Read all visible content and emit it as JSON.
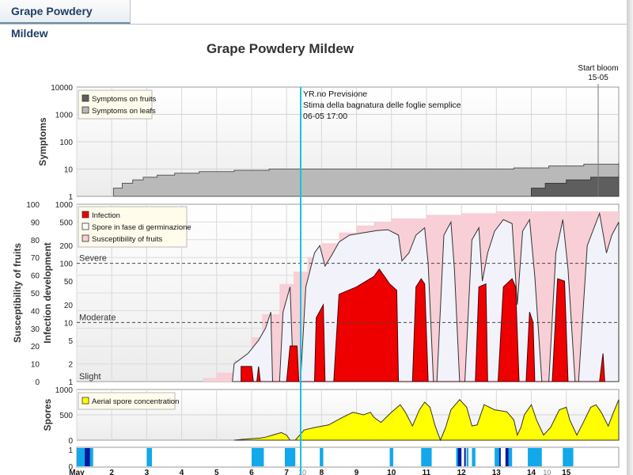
{
  "tab": {
    "label": "Grape Powdery Mildew"
  },
  "chart_data": {
    "type": "area",
    "title": "Grape Powdery Mildew",
    "current_marker": {
      "lines": [
        "YR.no Previsione",
        "Stima della bagnatura delle foglie semplice",
        "06-05 17:00"
      ],
      "color": "#19c3d8"
    },
    "bloom_marker": {
      "lines": [
        "Start bloom",
        "15-05"
      ]
    },
    "x_axis": {
      "ticks": [
        {
          "label": "May",
          "day": 1
        },
        {
          "label": "2",
          "day": 2
        },
        {
          "label": "3",
          "day": 3
        },
        {
          "label": "4",
          "day": 4
        },
        {
          "label": "5",
          "day": 5
        },
        {
          "label": "6",
          "day": 6
        },
        {
          "label": "7",
          "day": 7
        },
        {
          "label": "8",
          "day": 8
        },
        {
          "label": "9",
          "day": 9
        },
        {
          "label": "10",
          "day": 10
        },
        {
          "label": "11",
          "day": 11
        },
        {
          "label": "12",
          "day": 12
        },
        {
          "label": "13",
          "day": 13
        },
        {
          "label": "14",
          "day": 14
        },
        {
          "label": "15",
          "day": 15
        }
      ],
      "minor_labels": [
        {
          "label": "10",
          "day": 7.45
        },
        {
          "label": "10",
          "day": 14.45
        }
      ],
      "range": [
        1,
        16.5
      ]
    },
    "symptoms": {
      "ylabel": "Symptoms",
      "scale": "log",
      "ylim": [
        1,
        10000
      ],
      "ticks": [
        "10000",
        "1000",
        "100",
        "10",
        "1"
      ],
      "legend": [
        "Symptoms on fruits",
        "Symptoms on leafs"
      ],
      "colors": {
        "fruits": "#5e5e5e",
        "leafs": "#b9b9b9"
      },
      "leafs": [
        [
          2.05,
          2
        ],
        [
          2.3,
          3
        ],
        [
          2.6,
          4
        ],
        [
          2.9,
          5
        ],
        [
          3.3,
          6
        ],
        [
          3.8,
          7
        ],
        [
          4.5,
          8
        ],
        [
          5.5,
          9
        ],
        [
          6.5,
          10
        ],
        [
          10,
          10
        ],
        [
          13.5,
          11
        ],
        [
          14.5,
          13
        ],
        [
          15.5,
          15
        ],
        [
          16.5,
          17
        ]
      ],
      "fruits": [
        [
          14.0,
          2
        ],
        [
          14.4,
          3
        ],
        [
          15.0,
          4
        ],
        [
          15.7,
          5
        ],
        [
          16.5,
          6
        ]
      ]
    },
    "infection": {
      "ylabel_left": "Susceptibility of fruits",
      "ylabel_right": "Infection development",
      "left_ticks": [
        "100",
        "90",
        "80",
        "70",
        "60",
        "50",
        "40",
        "30",
        "20",
        "10",
        "0"
      ],
      "right_ticks": [
        "1000",
        "500",
        "200",
        "100",
        "50",
        "20",
        "10",
        "5",
        "2",
        "1"
      ],
      "thresholds": [
        {
          "label": "Severe",
          "value": 100
        },
        {
          "label": "Moderate",
          "value": 10
        },
        {
          "label": "Slight",
          "value": 1
        }
      ],
      "legend": [
        "Infection",
        "Spore in fase di germinazione",
        "Susceptibility of fruits"
      ],
      "colors": {
        "infection": "#ee0000",
        "spores": "#f2f2fa",
        "susceptibility": "#f8cfd6"
      },
      "susceptibility": [
        [
          4.0,
          0
        ],
        [
          4.6,
          2
        ],
        [
          5.0,
          5
        ],
        [
          5.5,
          12
        ],
        [
          6.0,
          25
        ],
        [
          6.3,
          38
        ],
        [
          6.8,
          55
        ],
        [
          7.2,
          62
        ],
        [
          7.6,
          70
        ],
        [
          8.0,
          78
        ],
        [
          8.5,
          84
        ],
        [
          9.0,
          88
        ],
        [
          9.5,
          90
        ],
        [
          10.0,
          92
        ],
        [
          11.0,
          94
        ],
        [
          12.0,
          95
        ],
        [
          13.0,
          96
        ],
        [
          16.5,
          98
        ]
      ],
      "germinating_spores": [
        [
          5.45,
          1
        ],
        [
          5.5,
          2
        ],
        [
          5.9,
          3
        ],
        [
          6.2,
          5
        ],
        [
          6.4,
          8
        ],
        [
          6.55,
          15
        ],
        [
          6.6,
          1
        ],
        [
          6.8,
          1
        ],
        [
          6.9,
          15
        ],
        [
          7.1,
          40
        ],
        [
          7.2,
          1
        ],
        [
          7.4,
          1
        ],
        [
          7.55,
          40
        ],
        [
          7.8,
          150
        ],
        [
          7.95,
          200
        ],
        [
          8.1,
          90
        ],
        [
          8.3,
          140
        ],
        [
          8.5,
          230
        ],
        [
          8.8,
          300
        ],
        [
          9.2,
          330
        ],
        [
          9.6,
          360
        ],
        [
          9.9,
          370
        ],
        [
          10.2,
          300
        ],
        [
          10.3,
          110
        ],
        [
          10.5,
          150
        ],
        [
          10.7,
          300
        ],
        [
          10.95,
          400
        ],
        [
          11.05,
          100
        ],
        [
          11.2,
          1
        ],
        [
          11.3,
          1
        ],
        [
          11.5,
          300
        ],
        [
          11.7,
          500
        ],
        [
          11.8,
          80
        ],
        [
          11.95,
          1
        ],
        [
          12.1,
          1
        ],
        [
          12.3,
          250
        ],
        [
          12.5,
          400
        ],
        [
          12.6,
          50
        ],
        [
          12.75,
          150
        ],
        [
          12.95,
          350
        ],
        [
          13.2,
          550
        ],
        [
          13.45,
          470
        ],
        [
          13.6,
          20
        ],
        [
          13.75,
          350
        ],
        [
          13.95,
          550
        ],
        [
          14.1,
          60
        ],
        [
          14.3,
          1
        ],
        [
          14.5,
          1
        ],
        [
          14.7,
          150
        ],
        [
          14.9,
          550
        ],
        [
          15.05,
          80
        ],
        [
          15.25,
          1
        ],
        [
          15.35,
          1
        ],
        [
          15.6,
          200
        ],
        [
          15.95,
          700
        ],
        [
          16.15,
          150
        ],
        [
          16.3,
          300
        ],
        [
          16.5,
          500
        ]
      ],
      "infection": [
        [
          5.7,
          1.8
        ],
        [
          6.0,
          1.8
        ],
        [
          6.05,
          1
        ],
        [
          6.15,
          1
        ],
        [
          6.2,
          1.8
        ],
        [
          6.25,
          1
        ],
        [
          7.0,
          1
        ],
        [
          7.1,
          4
        ],
        [
          7.3,
          4
        ],
        [
          7.35,
          1
        ],
        [
          7.8,
          1
        ],
        [
          7.85,
          12
        ],
        [
          8.05,
          20
        ],
        [
          8.1,
          1
        ],
        [
          8.35,
          1
        ],
        [
          8.5,
          30
        ],
        [
          9.0,
          40
        ],
        [
          9.5,
          60
        ],
        [
          9.65,
          80
        ],
        [
          9.8,
          60
        ],
        [
          9.95,
          45
        ],
        [
          10.15,
          35
        ],
        [
          10.2,
          1
        ],
        [
          10.6,
          1
        ],
        [
          10.7,
          40
        ],
        [
          10.85,
          55
        ],
        [
          10.95,
          45
        ],
        [
          11.05,
          1
        ],
        [
          12.4,
          1
        ],
        [
          12.5,
          40
        ],
        [
          12.7,
          45
        ],
        [
          12.75,
          1
        ],
        [
          13.05,
          1
        ],
        [
          13.2,
          40
        ],
        [
          13.45,
          55
        ],
        [
          13.55,
          40
        ],
        [
          13.65,
          1
        ],
        [
          13.85,
          1
        ],
        [
          13.95,
          15
        ],
        [
          14.05,
          10
        ],
        [
          14.1,
          1
        ],
        [
          14.6,
          1
        ],
        [
          14.75,
          55
        ],
        [
          14.95,
          50
        ],
        [
          15.05,
          1
        ],
        [
          15.95,
          1
        ],
        [
          16.05,
          3
        ],
        [
          16.1,
          1
        ]
      ]
    },
    "spores": {
      "ylabel": "Spores",
      "ylim": [
        0,
        1000
      ],
      "ticks": [
        "1000",
        "500",
        "0"
      ],
      "legend": [
        "Aerial spore concentration"
      ],
      "colors": {
        "fill": "#ffff00"
      },
      "values": [
        [
          5.5,
          0
        ],
        [
          5.8,
          20
        ],
        [
          6.0,
          30
        ],
        [
          6.25,
          40
        ],
        [
          6.4,
          60
        ],
        [
          6.6,
          100
        ],
        [
          6.85,
          150
        ],
        [
          7.0,
          100
        ],
        [
          7.1,
          0
        ],
        [
          7.25,
          0
        ],
        [
          7.5,
          200
        ],
        [
          7.8,
          250
        ],
        [
          8.2,
          300
        ],
        [
          8.6,
          450
        ],
        [
          8.9,
          550
        ],
        [
          9.2,
          500
        ],
        [
          9.4,
          550
        ],
        [
          9.5,
          450
        ],
        [
          9.7,
          350
        ],
        [
          10.0,
          550
        ],
        [
          10.25,
          700
        ],
        [
          10.4,
          550
        ],
        [
          10.6,
          280
        ],
        [
          10.8,
          600
        ],
        [
          10.95,
          750
        ],
        [
          11.1,
          650
        ],
        [
          11.25,
          280
        ],
        [
          11.4,
          0
        ],
        [
          11.55,
          250
        ],
        [
          11.7,
          600
        ],
        [
          11.95,
          800
        ],
        [
          12.15,
          650
        ],
        [
          12.3,
          280
        ],
        [
          12.45,
          300
        ],
        [
          12.65,
          700
        ],
        [
          12.95,
          600
        ],
        [
          13.3,
          560
        ],
        [
          13.5,
          400
        ],
        [
          13.6,
          100
        ],
        [
          13.7,
          250
        ],
        [
          13.8,
          500
        ],
        [
          14.0,
          700
        ],
        [
          14.15,
          400
        ],
        [
          14.35,
          100
        ],
        [
          14.55,
          250
        ],
        [
          14.8,
          600
        ],
        [
          15.0,
          650
        ],
        [
          15.1,
          400
        ],
        [
          15.3,
          100
        ],
        [
          15.45,
          300
        ],
        [
          15.7,
          650
        ],
        [
          15.85,
          700
        ],
        [
          16.0,
          550
        ],
        [
          16.2,
          280
        ],
        [
          16.35,
          550
        ],
        [
          16.5,
          800
        ]
      ]
    },
    "wetness": {
      "ticks": [
        "1",
        "0"
      ],
      "colors": {
        "light": "#12a8ea",
        "dark": "#001a9c"
      },
      "light_spans": [
        [
          1.0,
          1.35
        ],
        [
          1.38,
          1.47
        ],
        [
          3.0,
          3.15
        ],
        [
          6.0,
          6.35
        ],
        [
          6.95,
          7.25
        ],
        [
          7.95,
          8.05
        ],
        [
          9.95,
          10.05
        ],
        [
          10.85,
          11.15
        ],
        [
          11.85,
          12.0
        ],
        [
          12.15,
          12.2
        ],
        [
          12.3,
          12.4
        ],
        [
          12.95,
          13.1
        ],
        [
          13.35,
          13.45
        ],
        [
          13.9,
          14.3
        ],
        [
          14.9,
          15.2
        ]
      ],
      "dark_spans": [
        [
          1.23,
          1.38
        ],
        [
          11.9,
          12.0
        ],
        [
          12.08,
          12.12
        ],
        [
          13.08,
          13.12
        ],
        [
          13.26,
          13.35
        ]
      ]
    }
  }
}
